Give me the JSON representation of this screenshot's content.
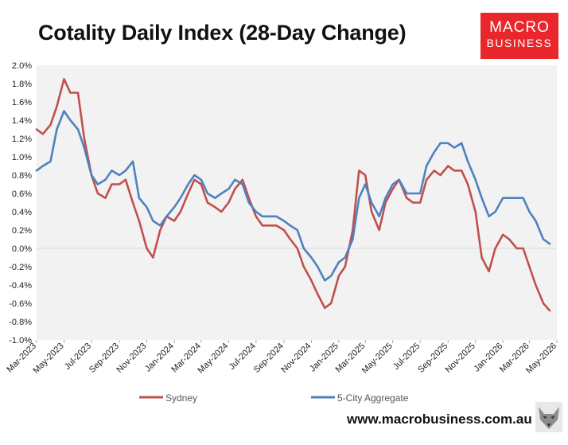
{
  "title": "Cotality Daily Index (28-Day Change)",
  "logo": {
    "line1": "MACRO",
    "line2": "BUSINESS",
    "color": "#e8262b"
  },
  "footer_url": "www.macrobusiness.com.au",
  "chart_data": {
    "type": "line",
    "title": "Cotality Daily Index (28-Day Change)",
    "xlabel": "",
    "ylabel": "",
    "ylim": [
      -1.0,
      2.0
    ],
    "y_ticks": [
      "-1.0%",
      "-0.8%",
      "-0.6%",
      "-0.4%",
      "-0.2%",
      "0.0%",
      "0.2%",
      "0.4%",
      "0.6%",
      "0.8%",
      "1.0%",
      "1.2%",
      "1.4%",
      "1.6%",
      "1.8%",
      "2.0%"
    ],
    "x_ticks": [
      "Mar-2023",
      "May-2023",
      "Jul-2023",
      "Sep-2023",
      "Nov-2023",
      "Jan-2024",
      "Mar-2024",
      "May-2024",
      "Jul-2024",
      "Sep-2024",
      "Nov-2024",
      "Jan-2025",
      "Mar-2025",
      "May-2025",
      "Jul-2025",
      "Sep-2025",
      "Nov-2025",
      "Jan-2026",
      "Mar-2026",
      "May-2026"
    ],
    "x_range": [
      "Mar-2023",
      "May-2026"
    ],
    "grid": "zero-line only",
    "legend_position": "bottom",
    "series": [
      {
        "name": "Sydney",
        "color": "#c0504d",
        "x": [
          "2023-03-01",
          "2023-03-15",
          "2023-04-01",
          "2023-04-15",
          "2023-05-01",
          "2023-05-15",
          "2023-06-01",
          "2023-06-15",
          "2023-07-01",
          "2023-07-15",
          "2023-08-01",
          "2023-08-15",
          "2023-09-01",
          "2023-09-15",
          "2023-10-01",
          "2023-10-15",
          "2023-11-01",
          "2023-11-15",
          "2023-12-01",
          "2023-12-15",
          "2024-01-01",
          "2024-01-15",
          "2024-02-01",
          "2024-02-15",
          "2024-03-01",
          "2024-03-15",
          "2024-04-01",
          "2024-04-15",
          "2024-05-01",
          "2024-05-15",
          "2024-06-01",
          "2024-06-15",
          "2024-07-01",
          "2024-07-15",
          "2024-08-01",
          "2024-08-15",
          "2024-09-01",
          "2024-09-15",
          "2024-10-01",
          "2024-10-15",
          "2024-11-01",
          "2024-11-15",
          "2024-12-01",
          "2024-12-15",
          "2025-01-01",
          "2025-01-15",
          "2025-02-01",
          "2025-02-15",
          "2025-03-01",
          "2025-03-15",
          "2025-04-01",
          "2025-04-15",
          "2025-05-01",
          "2025-05-15",
          "2025-06-01",
          "2025-06-15",
          "2025-07-01",
          "2025-07-15",
          "2025-08-01",
          "2025-08-15",
          "2025-09-01",
          "2025-09-15",
          "2025-10-01",
          "2025-10-15",
          "2025-11-01",
          "2025-11-15",
          "2025-12-01",
          "2025-12-15",
          "2026-01-01",
          "2026-01-15",
          "2026-02-01",
          "2026-02-15",
          "2026-03-01",
          "2026-03-15",
          "2026-04-01",
          "2026-04-15"
        ],
        "values": [
          1.3,
          1.25,
          1.35,
          1.55,
          1.85,
          1.7,
          1.7,
          1.2,
          0.8,
          0.6,
          0.55,
          0.7,
          0.7,
          0.75,
          0.5,
          0.3,
          0.0,
          -0.1,
          0.2,
          0.35,
          0.3,
          0.4,
          0.6,
          0.75,
          0.7,
          0.5,
          0.45,
          0.4,
          0.5,
          0.65,
          0.75,
          0.55,
          0.35,
          0.25,
          0.25,
          0.25,
          0.2,
          0.1,
          0.0,
          -0.2,
          -0.35,
          -0.5,
          -0.65,
          -0.6,
          -0.3,
          -0.2,
          0.2,
          0.85,
          0.8,
          0.4,
          0.2,
          0.5,
          0.65,
          0.75,
          0.55,
          0.5,
          0.5,
          0.75,
          0.85,
          0.8,
          0.9,
          0.85,
          0.85,
          0.7,
          0.4,
          -0.1,
          -0.25,
          0.0,
          0.15,
          0.1,
          0.0,
          0.0,
          -0.2,
          -0.4,
          -0.6,
          -0.68
        ]
      },
      {
        "name": "5-City Aggregate",
        "color": "#4f81bd",
        "x": [
          "2023-03-01",
          "2023-03-15",
          "2023-04-01",
          "2023-04-15",
          "2023-05-01",
          "2023-05-15",
          "2023-06-01",
          "2023-06-15",
          "2023-07-01",
          "2023-07-15",
          "2023-08-01",
          "2023-08-15",
          "2023-09-01",
          "2023-09-15",
          "2023-10-01",
          "2023-10-15",
          "2023-11-01",
          "2023-11-15",
          "2023-12-01",
          "2023-12-15",
          "2024-01-01",
          "2024-01-15",
          "2024-02-01",
          "2024-02-15",
          "2024-03-01",
          "2024-03-15",
          "2024-04-01",
          "2024-04-15",
          "2024-05-01",
          "2024-05-15",
          "2024-06-01",
          "2024-06-15",
          "2024-07-01",
          "2024-07-15",
          "2024-08-01",
          "2024-08-15",
          "2024-09-01",
          "2024-09-15",
          "2024-10-01",
          "2024-10-15",
          "2024-11-01",
          "2024-11-15",
          "2024-12-01",
          "2024-12-15",
          "2025-01-01",
          "2025-01-15",
          "2025-02-01",
          "2025-02-15",
          "2025-03-01",
          "2025-03-15",
          "2025-04-01",
          "2025-04-15",
          "2025-05-01",
          "2025-05-15",
          "2025-06-01",
          "2025-06-15",
          "2025-07-01",
          "2025-07-15",
          "2025-08-01",
          "2025-08-15",
          "2025-09-01",
          "2025-09-15",
          "2025-10-01",
          "2025-10-15",
          "2025-11-01",
          "2025-11-15",
          "2025-12-01",
          "2025-12-15",
          "2026-01-01",
          "2026-01-15",
          "2026-02-01",
          "2026-02-15",
          "2026-03-01",
          "2026-03-15",
          "2026-04-01",
          "2026-04-15"
        ],
        "values": [
          0.85,
          0.9,
          0.95,
          1.3,
          1.5,
          1.4,
          1.3,
          1.1,
          0.8,
          0.7,
          0.75,
          0.85,
          0.8,
          0.85,
          0.95,
          0.55,
          0.45,
          0.3,
          0.25,
          0.35,
          0.45,
          0.55,
          0.7,
          0.8,
          0.75,
          0.6,
          0.55,
          0.6,
          0.65,
          0.75,
          0.7,
          0.5,
          0.4,
          0.35,
          0.35,
          0.35,
          0.3,
          0.25,
          0.2,
          0.0,
          -0.1,
          -0.2,
          -0.35,
          -0.3,
          -0.15,
          -0.1,
          0.1,
          0.55,
          0.7,
          0.5,
          0.35,
          0.55,
          0.7,
          0.75,
          0.6,
          0.6,
          0.6,
          0.9,
          1.05,
          1.15,
          1.15,
          1.1,
          1.15,
          0.95,
          0.75,
          0.55,
          0.35,
          0.4,
          0.55,
          0.55,
          0.55,
          0.55,
          0.4,
          0.3,
          0.1,
          0.05
        ]
      }
    ]
  }
}
